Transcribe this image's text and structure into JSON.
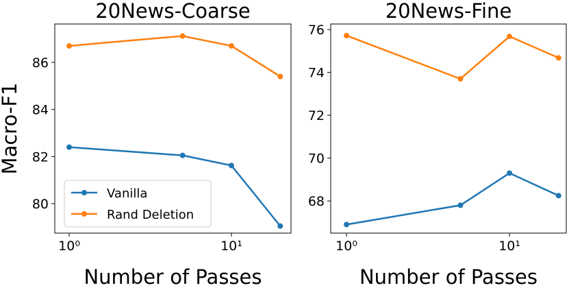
{
  "chart_data": [
    {
      "type": "line",
      "title": "20News-Coarse",
      "x_label": "Number of Passes",
      "y_label": "Macro-F1",
      "x": [
        1,
        5,
        10,
        20
      ],
      "xscale": "log",
      "xlim": [
        0.815,
        23.3
      ],
      "xticks": [
        {
          "value": 1,
          "label": "10⁰"
        },
        {
          "value": 10,
          "label": "10¹"
        }
      ],
      "ylim": [
        78.75,
        87.63
      ],
      "yticks": [
        80,
        82,
        84,
        86
      ],
      "legend": "lower left",
      "series": [
        {
          "name": "Vanilla",
          "color": "#1f77b4",
          "values": [
            82.4,
            82.05,
            81.62,
            79.05
          ]
        },
        {
          "name": "Rand Deletion",
          "color": "#ff7f0e",
          "values": [
            86.7,
            87.12,
            86.7,
            85.4
          ]
        }
      ]
    },
    {
      "type": "line",
      "title": "20News-Fine",
      "x_label": "Number of Passes",
      "x": [
        1,
        5,
        10,
        20
      ],
      "xscale": "log",
      "xlim": [
        0.8,
        22.3
      ],
      "xticks": [
        {
          "value": 1,
          "label": "10⁰"
        },
        {
          "value": 10,
          "label": "10¹"
        }
      ],
      "ylim": [
        66.5,
        76.26
      ],
      "yticks": [
        68,
        70,
        72,
        74,
        76
      ],
      "series": [
        {
          "name": "Vanilla",
          "color": "#1f77b4",
          "values": [
            66.9,
            67.8,
            69.3,
            68.25
          ]
        },
        {
          "name": "Rand Deletion",
          "color": "#ff7f0e",
          "values": [
            75.72,
            73.7,
            75.68,
            74.68
          ]
        }
      ]
    }
  ]
}
